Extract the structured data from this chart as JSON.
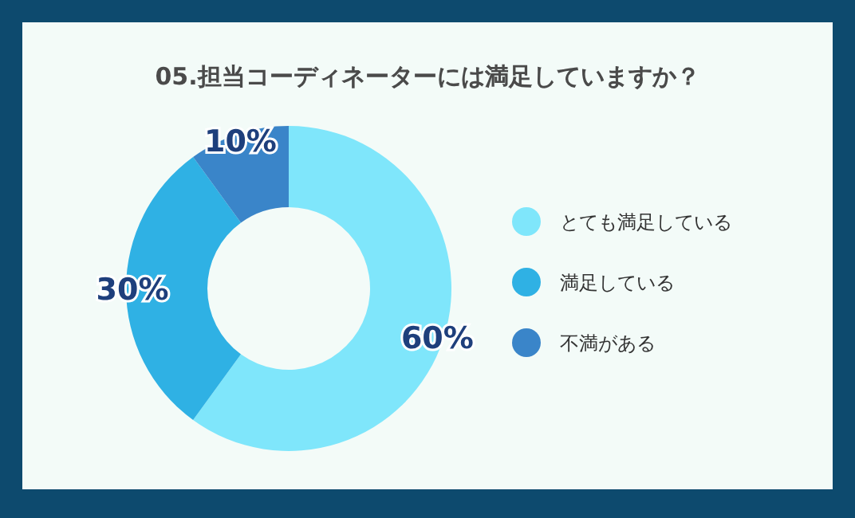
{
  "chart_data": {
    "type": "donut",
    "title": "05.担当コーディネーターには満足していますか？",
    "categories": [
      "とても満足している",
      "満足している",
      "不満がある"
    ],
    "values": [
      60,
      30,
      10
    ],
    "colors": [
      "#7fe6fb",
      "#2fb1e4",
      "#3a85c9"
    ],
    "value_labels": [
      "60%",
      "30%",
      "10%"
    ],
    "legend": "right"
  }
}
